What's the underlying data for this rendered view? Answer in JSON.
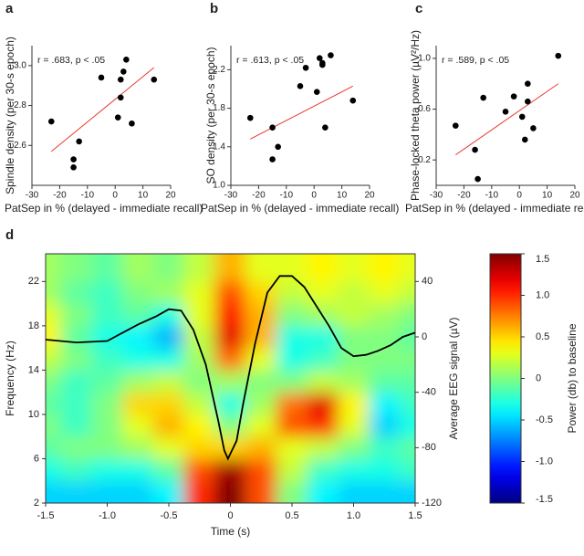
{
  "chart_data": [
    {
      "type": "scatter",
      "panel_label": "a",
      "annotation": "r = .683, p < .05",
      "xlabel": "PatSep in % (delayed - immediate recall)",
      "ylabel": "Spindle density (per 30-s epoch)",
      "x": [
        -23,
        -15,
        -15,
        -13,
        -5,
        1,
        2,
        2,
        3,
        4,
        6,
        14
      ],
      "values": [
        2.72,
        2.53,
        2.49,
        2.62,
        2.94,
        2.74,
        2.93,
        2.84,
        2.97,
        3.03,
        2.71,
        2.93
      ],
      "color": "#000000",
      "fit": {
        "x": [
          -23,
          14
        ],
        "y": [
          2.57,
          2.99
        ],
        "color": "#e8382e"
      },
      "xlim": [
        -30,
        20
      ],
      "xticks": [
        -30,
        -20,
        -10,
        0,
        10,
        20
      ],
      "ylim": [
        2.4,
        3.1
      ],
      "yticks": [
        2.6,
        2.8,
        {
          "value": 3,
          "label": "3.0"
        }
      ]
    },
    {
      "type": "scatter",
      "panel_label": "b",
      "annotation": "r = .613, p < .05",
      "xlabel": "PatSep in % (delayed - immediate recall)",
      "ylabel": "SO density (per 30-s epoch)",
      "x": [
        -23,
        -15,
        -15,
        -13,
        -5,
        -3,
        1,
        2,
        3,
        3,
        4,
        6,
        14
      ],
      "values": [
        1.7,
        1.6,
        1.27,
        1.4,
        2.03,
        2.22,
        1.97,
        2.32,
        2.27,
        2.25,
        1.6,
        2.35,
        1.88
      ],
      "color": "#000000",
      "fit": {
        "x": [
          -23,
          14
        ],
        "y": [
          1.48,
          2.03
        ],
        "color": "#e8382e"
      },
      "xlim": [
        -30,
        20
      ],
      "xticks": [
        -30,
        -20,
        -10,
        0,
        10,
        20
      ],
      "ylim": [
        1,
        2.45
      ],
      "yticks": [
        {
          "value": 1,
          "label": "1.0"
        },
        1.4,
        1.8,
        2.2
      ]
    },
    {
      "type": "scatter",
      "panel_label": "c",
      "annotation": "r = .589, p < .05",
      "xlabel": "PatSep in % (delayed - immediate recall)",
      "ylabel": "Phase-locked theta power (µV²/Hz)",
      "x": [
        -23,
        -16,
        -15,
        -13,
        -5,
        -2,
        1,
        2,
        3,
        3,
        5,
        14
      ],
      "values": [
        0.47,
        0.28,
        0.05,
        0.69,
        0.58,
        0.7,
        0.54,
        0.36,
        0.66,
        0.8,
        0.45,
        1.02
      ],
      "color": "#000000",
      "fit": {
        "x": [
          -23,
          14
        ],
        "y": [
          0.24,
          0.8
        ],
        "color": "#e8382e"
      },
      "xlim": [
        -30,
        20
      ],
      "xticks": [
        -30,
        -20,
        -10,
        0,
        10,
        20
      ],
      "ylim": [
        0,
        1.1
      ],
      "yticks": [
        0.2,
        0.6,
        {
          "value": 1,
          "label": "1.0"
        }
      ]
    },
    {
      "type": "heatmap",
      "panel_label": "d",
      "xlabel": "Time (s)",
      "ylabel": "Frequency (Hz)",
      "y2label": "Average EEG signal (µV)",
      "x": [
        -1.5,
        -1.25,
        -1,
        -0.75,
        -0.5,
        -0.25,
        0,
        0.25,
        0.5,
        0.75,
        1,
        1.25,
        1.5
      ],
      "y": [
        3,
        5,
        7,
        9,
        11,
        13,
        15,
        17,
        19,
        21,
        23
      ],
      "z": [
        [
          -0.5,
          -0.5,
          -0.5,
          -0.5,
          -0.4,
          1.0,
          1.5,
          0.9,
          0,
          -0.4,
          -0.5,
          -0.5,
          -0.5
        ],
        [
          -0.3,
          -0.2,
          -0.3,
          -0.3,
          -0.1,
          0.9,
          1.4,
          0.9,
          0.2,
          -0.2,
          -0.3,
          -0.3,
          -0.2
        ],
        [
          -0.1,
          0,
          0,
          0.1,
          0.3,
          0.5,
          0.5,
          0.6,
          0.3,
          0.2,
          0,
          -0.2,
          -0.1
        ],
        [
          0,
          -0.2,
          0,
          0.3,
          0.6,
          0.4,
          0,
          0.3,
          0.9,
          1.0,
          0.3,
          -0.5,
          -0.3
        ],
        [
          -0.1,
          -0.2,
          0,
          0.5,
          0.5,
          0.2,
          -0.3,
          0.1,
          0.8,
          1.2,
          0.4,
          -0.4,
          -0.2
        ],
        [
          0,
          -0.2,
          -0.1,
          0.1,
          0.2,
          0,
          0.1,
          0,
          0,
          0.2,
          0.1,
          -0.1,
          -0.1
        ],
        [
          0.2,
          0,
          -0.2,
          -0.3,
          -0.3,
          0.1,
          0.8,
          0.3,
          -0.3,
          -0.2,
          0,
          0,
          0
        ],
        [
          0.4,
          -0.1,
          -0.3,
          -0.4,
          -0.6,
          0.2,
          1.2,
          0.6,
          -0.3,
          -0.3,
          0,
          0,
          -0.1
        ],
        [
          0.3,
          0,
          -0.2,
          -0.1,
          -0.3,
          0.3,
          1.1,
          0.6,
          0,
          0.1,
          0.2,
          0.1,
          0
        ],
        [
          0.1,
          -0.1,
          -0.2,
          0,
          0.1,
          0.3,
          0.9,
          0.5,
          0.2,
          0.3,
          0.2,
          0.3,
          0.2
        ],
        [
          0.1,
          0,
          -0.1,
          0.1,
          0,
          0.2,
          0.6,
          0.3,
          0.3,
          0.4,
          0.3,
          0.4,
          0.3
        ]
      ],
      "colormap": "jet",
      "zlim": [
        -1.5,
        1.5
      ],
      "colorbar_label": "Power (db) to baseline",
      "colorbar_ticks": [
        -1.5,
        {
          "value": -1,
          "label": "-1.0"
        },
        -0.5,
        0,
        0.5,
        {
          "value": 1,
          "label": "1.0"
        },
        1.5
      ],
      "line": {
        "color": "#000000",
        "axis": "y2",
        "x": [
          -1.5,
          -1.25,
          -1,
          -0.75,
          -0.6,
          -0.5,
          -0.4,
          -0.3,
          -0.2,
          -0.1,
          -0.05,
          -0.02,
          0.05,
          0.1,
          0.2,
          0.3,
          0.4,
          0.5,
          0.6,
          0.7,
          0.8,
          0.9,
          1,
          1.1,
          1.2,
          1.3,
          1.4,
          1.5
        ],
        "values": [
          -2,
          -4,
          -3,
          9,
          15,
          20,
          19,
          5,
          -20,
          -60,
          -82,
          -88,
          -75,
          -50,
          -5,
          32,
          44,
          44,
          36,
          22,
          8,
          -8,
          -14,
          -13,
          -10,
          -6,
          0,
          3
        ]
      },
      "xlim": [
        -1.5,
        1.5
      ],
      "xticks": [
        -1.5,
        {
          "value": -1,
          "label": "-1.0"
        },
        -0.5,
        0,
        0.5,
        {
          "value": 1,
          "label": "1.0"
        },
        1.5
      ],
      "ylim": [
        2,
        24.5
      ],
      "yticks": [
        2,
        6,
        10,
        14,
        18,
        22
      ],
      "y2lim": [
        -120,
        60
      ],
      "y2ticks": [
        -120,
        -80,
        -40,
        0,
        40
      ]
    }
  ]
}
